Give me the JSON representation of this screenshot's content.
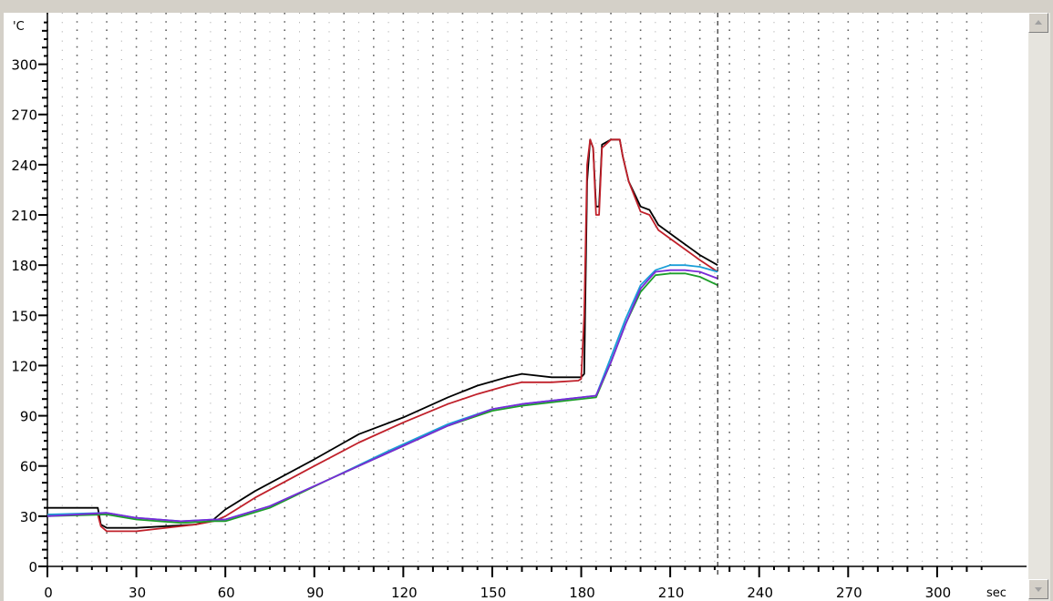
{
  "chart_data": {
    "type": "line",
    "y_unit": "'C",
    "x_unit": "sec",
    "x_ticks": [
      0,
      30,
      60,
      90,
      120,
      150,
      180,
      210,
      240,
      270,
      300
    ],
    "y_ticks": [
      0,
      30,
      60,
      90,
      120,
      150,
      180,
      210,
      240,
      270,
      300
    ],
    "xlim": [
      0,
      315
    ],
    "ylim": [
      0,
      325
    ],
    "grid": true,
    "cursor_x": 226,
    "series": [
      {
        "color": "#000000",
        "points": [
          [
            0,
            35
          ],
          [
            17,
            35
          ],
          [
            18,
            25
          ],
          [
            20,
            23
          ],
          [
            30,
            23
          ],
          [
            50,
            25
          ],
          [
            56,
            28
          ],
          [
            60,
            34
          ],
          [
            70,
            45
          ],
          [
            90,
            64
          ],
          [
            105,
            79
          ],
          [
            120,
            89
          ],
          [
            135,
            101
          ],
          [
            145,
            108
          ],
          [
            155,
            113
          ],
          [
            160,
            115
          ],
          [
            170,
            113
          ],
          [
            180,
            113
          ],
          [
            181,
            115
          ],
          [
            182,
            230
          ],
          [
            183,
            255
          ],
          [
            184,
            250
          ],
          [
            185,
            215
          ],
          [
            186,
            215
          ],
          [
            187,
            252
          ],
          [
            190,
            255
          ],
          [
            193,
            255
          ],
          [
            194,
            245
          ],
          [
            196,
            230
          ],
          [
            200,
            215
          ],
          [
            203,
            213
          ],
          [
            206,
            204
          ],
          [
            213,
            195
          ],
          [
            220,
            186
          ],
          [
            226,
            180
          ]
        ]
      },
      {
        "color": "#c0202a",
        "points": [
          [
            0,
            31
          ],
          [
            17,
            31
          ],
          [
            18,
            24
          ],
          [
            20,
            21
          ],
          [
            30,
            21
          ],
          [
            50,
            25
          ],
          [
            56,
            27
          ],
          [
            60,
            30
          ],
          [
            70,
            41
          ],
          [
            90,
            60
          ],
          [
            105,
            74
          ],
          [
            120,
            86
          ],
          [
            135,
            97
          ],
          [
            145,
            103
          ],
          [
            155,
            108
          ],
          [
            160,
            110
          ],
          [
            170,
            110
          ],
          [
            179,
            111
          ],
          [
            180,
            112
          ],
          [
            181,
            150
          ],
          [
            182,
            240
          ],
          [
            183,
            255
          ],
          [
            184,
            250
          ],
          [
            185,
            210
          ],
          [
            186,
            210
          ],
          [
            187,
            250
          ],
          [
            190,
            255
          ],
          [
            193,
            255
          ],
          [
            194,
            245
          ],
          [
            196,
            230
          ],
          [
            200,
            212
          ],
          [
            203,
            210
          ],
          [
            206,
            201
          ],
          [
            213,
            192
          ],
          [
            220,
            183
          ],
          [
            226,
            176
          ]
        ]
      },
      {
        "color": "#1a9ed8",
        "points": [
          [
            0,
            31
          ],
          [
            20,
            32
          ],
          [
            30,
            29
          ],
          [
            45,
            27
          ],
          [
            56,
            28
          ],
          [
            60,
            28
          ],
          [
            75,
            36
          ],
          [
            95,
            52
          ],
          [
            115,
            69
          ],
          [
            135,
            85
          ],
          [
            150,
            94
          ],
          [
            160,
            97
          ],
          [
            175,
            100
          ],
          [
            185,
            102
          ],
          [
            190,
            125
          ],
          [
            195,
            148
          ],
          [
            200,
            168
          ],
          [
            205,
            177
          ],
          [
            210,
            180
          ],
          [
            215,
            180
          ],
          [
            220,
            179
          ],
          [
            226,
            176
          ]
        ]
      },
      {
        "color": "#1d9e2a",
        "points": [
          [
            0,
            30
          ],
          [
            20,
            31
          ],
          [
            30,
            28
          ],
          [
            45,
            26
          ],
          [
            56,
            27
          ],
          [
            60,
            27
          ],
          [
            75,
            35
          ],
          [
            95,
            52
          ],
          [
            115,
            68
          ],
          [
            135,
            84
          ],
          [
            150,
            93
          ],
          [
            160,
            96
          ],
          [
            175,
            99
          ],
          [
            185,
            101
          ],
          [
            190,
            122
          ],
          [
            195,
            145
          ],
          [
            200,
            164
          ],
          [
            205,
            174
          ],
          [
            210,
            175
          ],
          [
            215,
            175
          ],
          [
            220,
            173
          ],
          [
            226,
            168
          ]
        ]
      },
      {
        "color": "#7a2ad8",
        "points": [
          [
            0,
            30
          ],
          [
            20,
            32
          ],
          [
            30,
            29
          ],
          [
            45,
            27
          ],
          [
            56,
            28
          ],
          [
            60,
            28
          ],
          [
            75,
            36
          ],
          [
            95,
            52
          ],
          [
            115,
            68
          ],
          [
            135,
            84
          ],
          [
            150,
            94
          ],
          [
            160,
            97
          ],
          [
            175,
            100
          ],
          [
            185,
            102
          ],
          [
            190,
            122
          ],
          [
            195,
            145
          ],
          [
            200,
            166
          ],
          [
            205,
            176
          ],
          [
            210,
            177
          ],
          [
            215,
            177
          ],
          [
            220,
            176
          ],
          [
            226,
            172
          ]
        ]
      }
    ]
  }
}
